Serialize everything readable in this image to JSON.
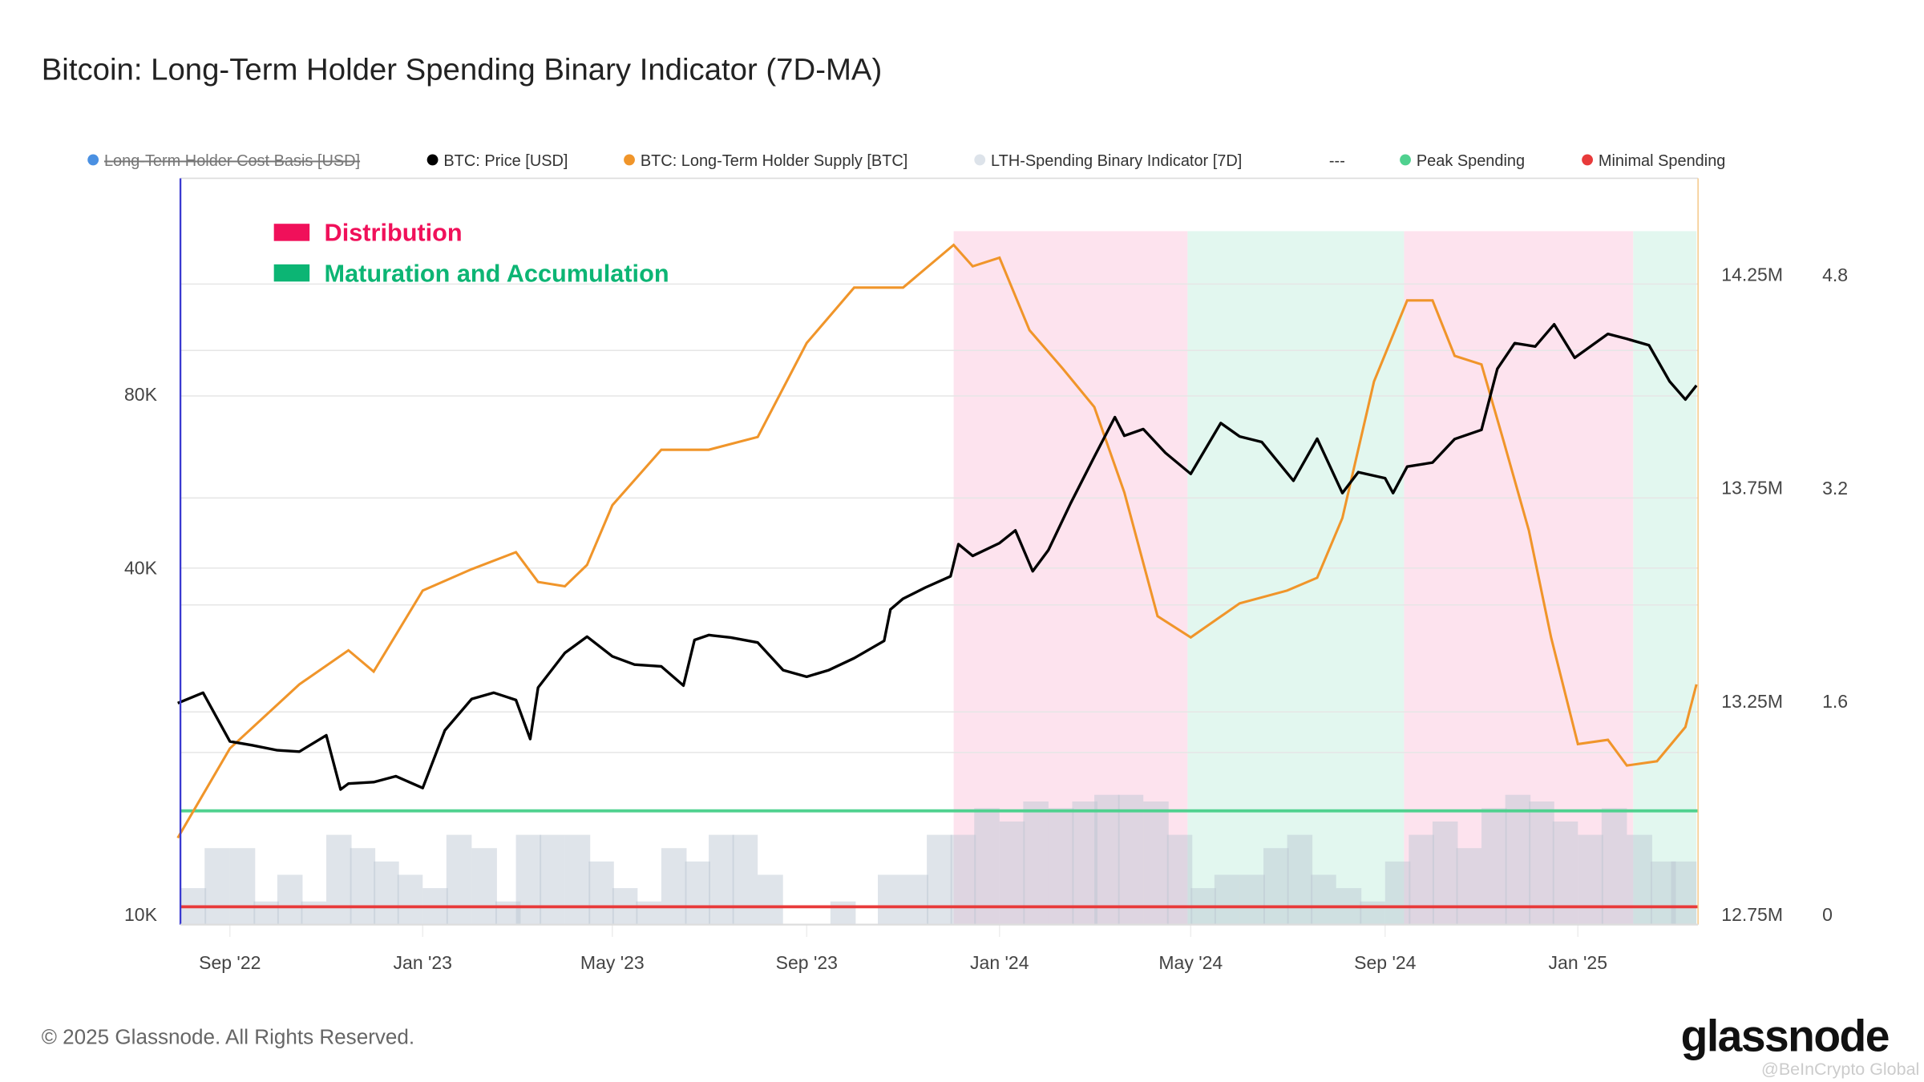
{
  "title": "Bitcoin: Long-Term Holder Spending Binary Indicator (7D-MA)",
  "legend": [
    {
      "label": "Long-Term Holder Cost Basis [USD]",
      "color": "#4a90e2",
      "disabled": true
    },
    {
      "label": "BTC: Price [USD]",
      "color": "#000000",
      "disabled": false
    },
    {
      "label": "BTC: Long-Term Holder Supply [BTC]",
      "color": "#f0952a",
      "disabled": false
    },
    {
      "label": "LTH-Spending Binary Indicator [7D]",
      "color": "#dde3ea",
      "disabled": false
    },
    {
      "label": "---",
      "color": "",
      "disabled": false
    },
    {
      "label": "Peak Spending",
      "color": "#4fd18f",
      "disabled": false
    },
    {
      "label": "Minimal Spending",
      "color": "#e83a3a",
      "disabled": false
    }
  ],
  "annotations": [
    {
      "label": "Distribution",
      "color": "#f0105a"
    },
    {
      "label": "Maturation and Accumulation",
      "color": "#0cb574"
    }
  ],
  "footer": {
    "copyright": "© 2025 Glassnode. All Rights Reserved.",
    "logo": "glassnode",
    "watermark": "@BeInCrypto Global"
  },
  "chart_data": {
    "type": "line",
    "title": "Bitcoin: Long-Term Holder Spending Binary Indicator (7D-MA)",
    "x_range": [
      "2022-07-30",
      "2025-03-17"
    ],
    "x_ticks": [
      {
        "date": "2022-09-01",
        "label": "Sep '22"
      },
      {
        "date": "2023-01-01",
        "label": "Jan '23"
      },
      {
        "date": "2023-05-01",
        "label": "May '23"
      },
      {
        "date": "2023-09-01",
        "label": "Sep '23"
      },
      {
        "date": "2024-01-01",
        "label": "Jan '24"
      },
      {
        "date": "2024-05-01",
        "label": "May '24"
      },
      {
        "date": "2024-09-01",
        "label": "Sep '24"
      },
      {
        "date": "2025-01-01",
        "label": "Jan '25"
      }
    ],
    "y_left": {
      "scale": "log",
      "ticks": [
        {
          "value": 10000,
          "label": "10K"
        },
        {
          "value": 40000,
          "label": "40K"
        },
        {
          "value": 80000,
          "label": "80K"
        }
      ]
    },
    "y_right_supply": {
      "scale": "linear",
      "range": [
        12.75,
        14.25
      ],
      "ticks": [
        {
          "value": 12.75,
          "label": "12.75M"
        },
        {
          "value": 13.25,
          "label": "13.25M"
        },
        {
          "value": 13.75,
          "label": "13.75M"
        },
        {
          "value": 14.25,
          "label": "14.25M"
        }
      ]
    },
    "y_right_indicator": {
      "scale": "linear",
      "range": [
        0,
        4.8
      ],
      "ticks": [
        {
          "value": 0,
          "label": "0"
        },
        {
          "value": 1.6,
          "label": "1.6"
        },
        {
          "value": 3.2,
          "label": "3.2"
        },
        {
          "value": 4.8,
          "label": "4.8"
        }
      ]
    },
    "regions": [
      {
        "start": "2023-12-03",
        "end": "2024-04-29",
        "type": "Distribution",
        "color": "#fde3ee"
      },
      {
        "start": "2024-04-29",
        "end": "2024-09-13",
        "type": "Maturation and Accumulation",
        "color": "#e2f7ef"
      },
      {
        "start": "2024-09-13",
        "end": "2025-02-05",
        "type": "Distribution",
        "color": "#fde3ee"
      },
      {
        "start": "2025-02-05",
        "end": "2025-03-17",
        "type": "Maturation and Accumulation",
        "color": "#e2f7ef"
      }
    ],
    "thresholds": [
      {
        "name": "Peak Spending",
        "value": 0.78,
        "color": "#4fd18f"
      },
      {
        "name": "Minimal Spending",
        "value": 0.06,
        "color": "#e83a3a"
      }
    ],
    "series": [
      {
        "name": "BTC: Price [USD]",
        "axis": "left",
        "color": "#000000",
        "points": [
          [
            "2022-07-30",
            23300
          ],
          [
            "2022-08-15",
            24300
          ],
          [
            "2022-09-01",
            20000
          ],
          [
            "2022-09-15",
            19700
          ],
          [
            "2022-10-01",
            19300
          ],
          [
            "2022-10-15",
            19200
          ],
          [
            "2022-11-01",
            20500
          ],
          [
            "2022-11-10",
            16500
          ],
          [
            "2022-11-15",
            16900
          ],
          [
            "2022-12-01",
            17000
          ],
          [
            "2022-12-15",
            17400
          ],
          [
            "2023-01-01",
            16600
          ],
          [
            "2023-01-15",
            20900
          ],
          [
            "2023-02-01",
            23700
          ],
          [
            "2023-02-15",
            24300
          ],
          [
            "2023-03-01",
            23600
          ],
          [
            "2023-03-10",
            20200
          ],
          [
            "2023-03-15",
            24800
          ],
          [
            "2023-04-01",
            28500
          ],
          [
            "2023-04-15",
            30400
          ],
          [
            "2023-05-01",
            28100
          ],
          [
            "2023-05-15",
            27200
          ],
          [
            "2023-06-01",
            27000
          ],
          [
            "2023-06-15",
            25000
          ],
          [
            "2023-06-22",
            30000
          ],
          [
            "2023-07-01",
            30600
          ],
          [
            "2023-07-15",
            30300
          ],
          [
            "2023-08-01",
            29700
          ],
          [
            "2023-08-17",
            26600
          ],
          [
            "2023-09-01",
            25900
          ],
          [
            "2023-09-15",
            26600
          ],
          [
            "2023-10-01",
            27900
          ],
          [
            "2023-10-20",
            29900
          ],
          [
            "2023-10-24",
            33900
          ],
          [
            "2023-11-01",
            35400
          ],
          [
            "2023-11-15",
            37000
          ],
          [
            "2023-12-01",
            38700
          ],
          [
            "2023-12-06",
            44000
          ],
          [
            "2023-12-15",
            42000
          ],
          [
            "2024-01-01",
            44200
          ],
          [
            "2024-01-11",
            46500
          ],
          [
            "2024-01-22",
            39500
          ],
          [
            "2024-02-01",
            43000
          ],
          [
            "2024-02-15",
            51800
          ],
          [
            "2024-03-01",
            62400
          ],
          [
            "2024-03-14",
            73100
          ],
          [
            "2024-03-20",
            67900
          ],
          [
            "2024-04-01",
            69700
          ],
          [
            "2024-04-15",
            63400
          ],
          [
            "2024-05-01",
            58300
          ],
          [
            "2024-05-20",
            71400
          ],
          [
            "2024-06-01",
            67700
          ],
          [
            "2024-06-15",
            66200
          ],
          [
            "2024-07-05",
            56700
          ],
          [
            "2024-07-20",
            67100
          ],
          [
            "2024-08-05",
            54000
          ],
          [
            "2024-08-15",
            58700
          ],
          [
            "2024-09-01",
            57300
          ],
          [
            "2024-09-06",
            54000
          ],
          [
            "2024-09-15",
            60000
          ],
          [
            "2024-10-01",
            61000
          ],
          [
            "2024-10-15",
            67000
          ],
          [
            "2024-11-01",
            69500
          ],
          [
            "2024-11-11",
            88700
          ],
          [
            "2024-11-22",
            98300
          ],
          [
            "2024-12-05",
            97000
          ],
          [
            "2024-12-17",
            106000
          ],
          [
            "2024-12-30",
            92700
          ],
          [
            "2025-01-20",
            102000
          ],
          [
            "2025-02-01",
            100000
          ],
          [
            "2025-02-15",
            97500
          ],
          [
            "2025-02-28",
            84400
          ],
          [
            "2025-03-10",
            78500
          ],
          [
            "2025-03-17",
            83000
          ]
        ]
      },
      {
        "name": "BTC: Long-Term Holder Supply [BTC]",
        "axis": "right_supply",
        "unit": "M",
        "color": "#f0952a",
        "points": [
          [
            "2022-07-30",
            12.93
          ],
          [
            "2022-09-01",
            13.14
          ],
          [
            "2022-10-15",
            13.29
          ],
          [
            "2022-11-15",
            13.37
          ],
          [
            "2022-12-01",
            13.32
          ],
          [
            "2023-01-01",
            13.51
          ],
          [
            "2023-02-01",
            13.56
          ],
          [
            "2023-03-01",
            13.6
          ],
          [
            "2023-03-15",
            13.53
          ],
          [
            "2023-04-01",
            13.52
          ],
          [
            "2023-04-15",
            13.57
          ],
          [
            "2023-05-01",
            13.71
          ],
          [
            "2023-06-01",
            13.84
          ],
          [
            "2023-07-01",
            13.84
          ],
          [
            "2023-08-01",
            13.87
          ],
          [
            "2023-09-01",
            14.09
          ],
          [
            "2023-10-01",
            14.22
          ],
          [
            "2023-11-01",
            14.22
          ],
          [
            "2023-12-03",
            14.32
          ],
          [
            "2023-12-15",
            14.27
          ],
          [
            "2024-01-01",
            14.29
          ],
          [
            "2024-01-20",
            14.12
          ],
          [
            "2024-02-10",
            14.03
          ],
          [
            "2024-03-01",
            13.94
          ],
          [
            "2024-03-20",
            13.74
          ],
          [
            "2024-04-10",
            13.45
          ],
          [
            "2024-05-01",
            13.4
          ],
          [
            "2024-06-01",
            13.48
          ],
          [
            "2024-07-01",
            13.51
          ],
          [
            "2024-07-20",
            13.54
          ],
          [
            "2024-08-05",
            13.68
          ],
          [
            "2024-08-25",
            14.0
          ],
          [
            "2024-09-15",
            14.19
          ],
          [
            "2024-10-01",
            14.19
          ],
          [
            "2024-10-15",
            14.06
          ],
          [
            "2024-11-01",
            14.04
          ],
          [
            "2024-11-15",
            13.86
          ],
          [
            "2024-12-01",
            13.65
          ],
          [
            "2024-12-15",
            13.4
          ],
          [
            "2025-01-01",
            13.15
          ],
          [
            "2025-01-20",
            13.16
          ],
          [
            "2025-02-01",
            13.1
          ],
          [
            "2025-02-20",
            13.11
          ],
          [
            "2025-03-10",
            13.19
          ],
          [
            "2025-03-17",
            13.29
          ]
        ]
      },
      {
        "name": "LTH-Spending Binary Indicator [7D]",
        "axis": "right_indicator",
        "type": "bar",
        "color": "#dde3ea",
        "points": [
          [
            "2022-08-01",
            0.2
          ],
          [
            "2022-08-16",
            0.5
          ],
          [
            "2022-09-01",
            0.5
          ],
          [
            "2022-09-16",
            0.1
          ],
          [
            "2022-10-01",
            0.3
          ],
          [
            "2022-10-16",
            0.1
          ],
          [
            "2022-11-01",
            0.6
          ],
          [
            "2022-11-16",
            0.5
          ],
          [
            "2022-12-01",
            0.4
          ],
          [
            "2022-12-16",
            0.3
          ],
          [
            "2023-01-01",
            0.2
          ],
          [
            "2023-01-16",
            0.6
          ],
          [
            "2023-02-01",
            0.5
          ],
          [
            "2023-02-16",
            0.1
          ],
          [
            "2023-03-01",
            0.6
          ],
          [
            "2023-03-16",
            0.6
          ],
          [
            "2023-04-01",
            0.6
          ],
          [
            "2023-04-16",
            0.4
          ],
          [
            "2023-05-01",
            0.2
          ],
          [
            "2023-05-16",
            0.1
          ],
          [
            "2023-06-01",
            0.5
          ],
          [
            "2023-06-16",
            0.4
          ],
          [
            "2023-07-01",
            0.6
          ],
          [
            "2023-07-16",
            0.6
          ],
          [
            "2023-08-01",
            0.3
          ],
          [
            "2023-08-16",
            0.0
          ],
          [
            "2023-09-01",
            0.0
          ],
          [
            "2023-09-16",
            0.1
          ],
          [
            "2023-10-01",
            0.0
          ],
          [
            "2023-10-16",
            0.3
          ],
          [
            "2023-11-01",
            0.3
          ],
          [
            "2023-11-16",
            0.6
          ],
          [
            "2023-12-01",
            0.6
          ],
          [
            "2023-12-16",
            0.8
          ],
          [
            "2024-01-01",
            0.7
          ],
          [
            "2024-01-16",
            0.85
          ],
          [
            "2024-02-01",
            0.8
          ],
          [
            "2024-02-16",
            0.85
          ],
          [
            "2024-03-01",
            0.9
          ],
          [
            "2024-03-16",
            0.9
          ],
          [
            "2024-04-01",
            0.85
          ],
          [
            "2024-04-16",
            0.6
          ],
          [
            "2024-05-01",
            0.2
          ],
          [
            "2024-05-16",
            0.3
          ],
          [
            "2024-06-01",
            0.3
          ],
          [
            "2024-06-16",
            0.5
          ],
          [
            "2024-07-01",
            0.6
          ],
          [
            "2024-07-16",
            0.3
          ],
          [
            "2024-08-01",
            0.2
          ],
          [
            "2024-08-16",
            0.1
          ],
          [
            "2024-09-01",
            0.4
          ],
          [
            "2024-09-16",
            0.6
          ],
          [
            "2024-10-01",
            0.7
          ],
          [
            "2024-10-16",
            0.5
          ],
          [
            "2024-11-01",
            0.8
          ],
          [
            "2024-11-16",
            0.9
          ],
          [
            "2024-12-01",
            0.85
          ],
          [
            "2024-12-16",
            0.7
          ],
          [
            "2025-01-01",
            0.6
          ],
          [
            "2025-01-16",
            0.8
          ],
          [
            "2025-02-01",
            0.6
          ],
          [
            "2025-02-16",
            0.4
          ],
          [
            "2025-03-01",
            0.4
          ]
        ]
      }
    ]
  }
}
